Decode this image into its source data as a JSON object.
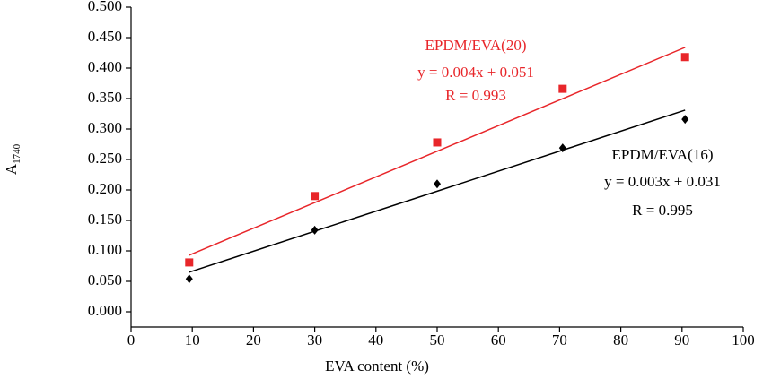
{
  "chart_data": {
    "type": "scatter",
    "x_label": "EVA content (%)",
    "y_label": "A",
    "y_label_sub": "1740",
    "xlim": [
      0,
      100
    ],
    "xticks": [
      0,
      10,
      20,
      30,
      40,
      50,
      60,
      70,
      80,
      90,
      100
    ],
    "ylim": [
      0,
      0.5
    ],
    "yticks": [
      {
        "value": 0,
        "label": "0.000"
      },
      {
        "value": 0.05,
        "label": "0.050"
      },
      {
        "value": 0.1,
        "label": "0.100"
      },
      {
        "value": 0.15,
        "label": "0.150"
      },
      {
        "value": 0.2,
        "label": "0.200"
      },
      {
        "value": 0.25,
        "label": "0.250"
      },
      {
        "value": 0.3,
        "label": "0.300"
      },
      {
        "value": 0.35,
        "label": "0.350"
      },
      {
        "value": 0.4,
        "label": "0.400"
      },
      {
        "value": 0.45,
        "label": "0.450"
      },
      {
        "value": 0.5,
        "label": "0.500"
      }
    ],
    "series": [
      {
        "name": "EPDM/EVA(20)",
        "color": "#e8262a",
        "marker": "square",
        "x": [
          9.5,
          30,
          50,
          70.5,
          90.5
        ],
        "values": [
          0.081,
          0.19,
          0.278,
          0.366,
          0.418
        ],
        "fit": {
          "x": [
            9.5,
            90.5
          ],
          "values": [
            0.093,
            0.434
          ]
        },
        "equation": "y = 0.004x + 0.051",
        "r": "R = 0.993"
      },
      {
        "name": "EPDM/EVA(16)",
        "color": "#000000",
        "marker": "diamond",
        "x": [
          9.5,
          30,
          50,
          70.5,
          90.5
        ],
        "values": [
          0.054,
          0.134,
          0.21,
          0.269,
          0.316
        ],
        "fit": {
          "x": [
            9.5,
            90.5
          ],
          "values": [
            0.065,
            0.331
          ]
        },
        "equation": "y = 0.003x + 0.031",
        "r": "R = 0.995"
      }
    ]
  }
}
